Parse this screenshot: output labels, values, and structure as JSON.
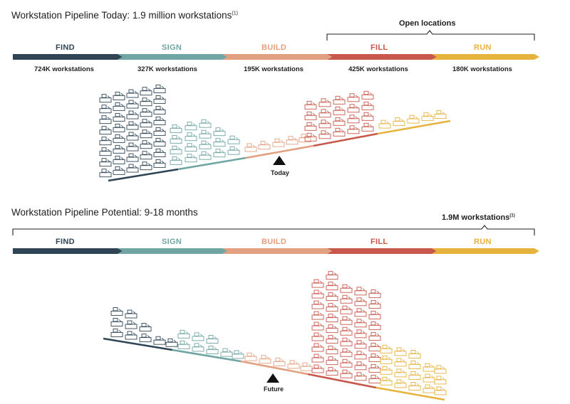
{
  "colors": {
    "find": "#2f4555",
    "sign": "#6fa5a2",
    "build": "#e1a07f",
    "fill": "#c8584c",
    "run": "#e6b33c"
  },
  "today": {
    "title": "Workstation Pipeline Today: 1.9 million workstations",
    "title_note": "(1)",
    "bracket_label": "Open locations",
    "marker_label": "Today",
    "stages": [
      {
        "name": "FIND",
        "count": "724K workstations"
      },
      {
        "name": "SIGN",
        "count": "327K workstations"
      },
      {
        "name": "BUILD",
        "count": "195K workstations"
      },
      {
        "name": "FILL",
        "count": "425K workstations"
      },
      {
        "name": "RUN",
        "count": "180K workstations"
      }
    ]
  },
  "potential": {
    "title": "Workstation Pipeline Potential: 9-18 months",
    "bracket_label": "1.9M workstations",
    "bracket_note": "(1)",
    "marker_label": "Future",
    "stages": [
      {
        "name": "FIND"
      },
      {
        "name": "SIGN"
      },
      {
        "name": "BUILD"
      },
      {
        "name": "FILL"
      },
      {
        "name": "RUN"
      }
    ]
  }
}
